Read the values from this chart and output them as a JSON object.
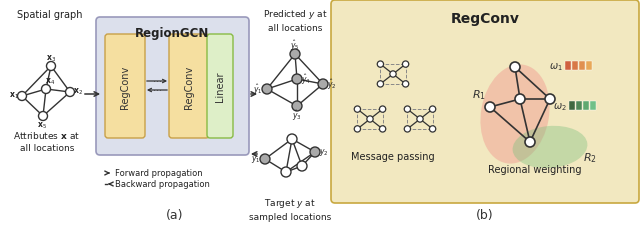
{
  "fig_width": 6.4,
  "fig_height": 2.3,
  "dpi": 100,
  "bg_color": "#ffffff",
  "panel_a_label": "(a)",
  "panel_b_label": "(b)",
  "regiongcn_title": "RegionGCN",
  "regconv_title": "RegConv",
  "spatial_graph_title": "Spatial graph",
  "forward_label": "→  Forward propagation",
  "backward_label": "←–  Backward propagation",
  "message_passing_label": "Message passing",
  "regional_weighting_label": "Regional weighting",
  "box_bg_color": "#dce0ec",
  "regconv_box_color": "#f5dfa0",
  "linear_box_color": "#deefc8",
  "regconv_panel_color": "#f2e8c0",
  "node_color_gray": "#aaaaaa",
  "node_color_white": "#ffffff",
  "edge_color_solid": "#333333",
  "edge_color_dashed": "#888888",
  "region1_color": "#f08080",
  "region2_color": "#80c080"
}
